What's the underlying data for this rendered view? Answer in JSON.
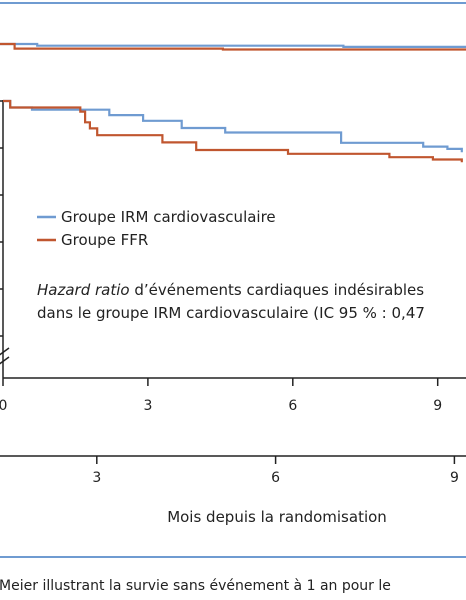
{
  "chart_data": {
    "type": "line",
    "title": "",
    "xlabel": "Mois depuis la randomisation",
    "ylabel": "",
    "xlim": [
      0,
      9.5
    ],
    "x_ticks_inner": [
      "0",
      "3",
      "6",
      "9"
    ],
    "x_ticks_outer": [
      "3",
      "6",
      "9"
    ],
    "grid": false,
    "legend": {
      "placement": "center-left",
      "entries": [
        {
          "label": "Groupe IRM cardiovasculaire",
          "color": "#6f9bd1"
        },
        {
          "label": "Groupe FFR",
          "color": "#c0562f"
        }
      ]
    },
    "annotation": {
      "italic": "Hazard ratio",
      "line1_rest": " d’événements cardiaques indésirables",
      "line2": "dans le groupe IRM cardiovasculaire (IC 95 % : 0,47"
    },
    "panels": [
      {
        "name": "upper",
        "series": [
          {
            "name": "Groupe IRM cardiovasculaire",
            "color": "#6f9bd1",
            "steps": [
              [
                0,
                100
              ],
              [
                0.9,
                99.6
              ],
              [
                7.0,
                99.3
              ],
              [
                9.5,
                99.1
              ]
            ]
          },
          {
            "name": "Groupe FFR",
            "color": "#c0562f",
            "steps": [
              [
                0,
                100
              ],
              [
                0.45,
                98.9
              ],
              [
                4.6,
                98.7
              ],
              [
                9.5,
                98.5
              ]
            ]
          }
        ]
      },
      {
        "name": "lower",
        "series": [
          {
            "name": "Groupe IRM cardiovasculaire",
            "color": "#6f9bd1",
            "steps": [
              [
                0,
                100
              ],
              [
                0.15,
                98.3
              ],
              [
                0.6,
                97.7
              ],
              [
                2.2,
                96.3
              ],
              [
                2.9,
                94.8
              ],
              [
                3.7,
                92.9
              ],
              [
                4.6,
                91.7
              ],
              [
                7.0,
                89.0
              ],
              [
                8.7,
                88.0
              ],
              [
                9.2,
                87.4
              ],
              [
                9.5,
                86.5
              ]
            ]
          },
          {
            "name": "Groupe FFR",
            "color": "#c0562f",
            "steps": [
              [
                0,
                100
              ],
              [
                0.15,
                98.3
              ],
              [
                1.6,
                97.2
              ],
              [
                1.7,
                94.4
              ],
              [
                1.8,
                92.8
              ],
              [
                1.95,
                91.0
              ],
              [
                3.3,
                89.1
              ],
              [
                4.0,
                87.1
              ],
              [
                5.9,
                86.1
              ],
              [
                8.0,
                85.2
              ],
              [
                8.9,
                84.6
              ],
              [
                9.5,
                83.9
              ]
            ]
          }
        ]
      }
    ]
  },
  "caption": "-Meier illustrant la survie sans événement à 1 an pour le"
}
